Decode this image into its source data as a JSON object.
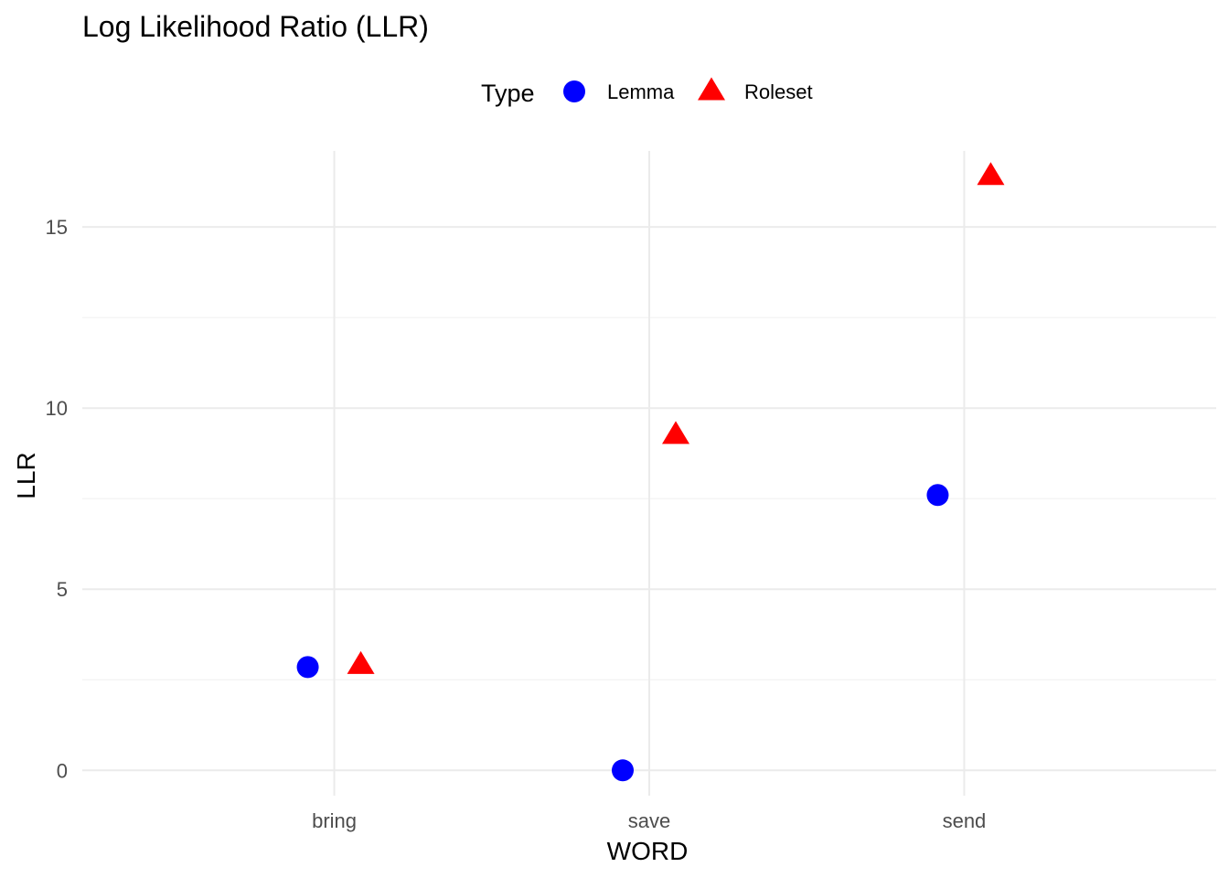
{
  "chart_data": {
    "type": "scatter",
    "title": "Log Likelihood Ratio (LLR)",
    "xlabel": "WORD",
    "ylabel": "LLR",
    "categories": [
      "bring",
      "save",
      "send"
    ],
    "ylim": [
      -0.7,
      17.1
    ],
    "yticks": [
      0,
      5,
      10,
      15
    ],
    "grid": true,
    "legend": {
      "title": "Type",
      "position": "top"
    },
    "series": [
      {
        "name": "Lemma",
        "shape": "circle",
        "color": "#0000ff",
        "values": [
          2.85,
          0.0,
          7.6
        ]
      },
      {
        "name": "Roleset",
        "shape": "triangle",
        "color": "#ff0000",
        "values": [
          2.9,
          9.25,
          16.4
        ]
      }
    ]
  }
}
